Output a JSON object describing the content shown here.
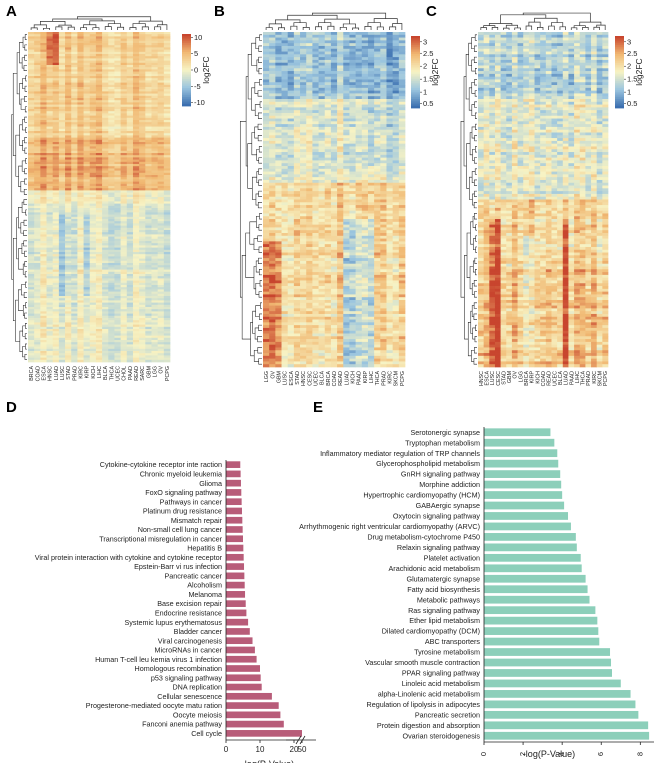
{
  "panels": {
    "A": {
      "letter": "A"
    },
    "B": {
      "letter": "B"
    },
    "C": {
      "letter": "C"
    },
    "D": {
      "letter": "D"
    },
    "E": {
      "letter": "E"
    }
  },
  "colors": {
    "low": "#3b6fb0",
    "mid_low": "#9cc6df",
    "mid": "#f7f3c4",
    "mid_high": "#f1b973",
    "high": "#c8452e",
    "bar_d": "#b85c79",
    "bar_e": "#8ccfba"
  },
  "chart_data": [
    {
      "type": "heatmap",
      "panel": "A",
      "legend_title": "log2FC",
      "legend_ticks": [
        "10",
        "5",
        "0",
        "-5",
        "-10"
      ],
      "range": [
        -10,
        10
      ],
      "columns": [
        "BRCA",
        "COAD",
        "ESCA",
        "HNSC",
        "LUAD",
        "LUSC",
        "STAD",
        "PRAD",
        "KIRC",
        "KIRP",
        "KICH",
        "LIHC",
        "BLCA",
        "THCA",
        "UCEC",
        "CHOL",
        "PAAD",
        "READ",
        "SARC",
        "GBM",
        "LGG",
        "OV",
        "PCPG"
      ]
    },
    {
      "type": "heatmap",
      "panel": "B",
      "legend_title": "log2FC",
      "legend_ticks": [
        "3",
        "2.5",
        "2",
        "1.5",
        "1",
        "0.5"
      ],
      "range": [
        0.3,
        3.2
      ],
      "columns": [
        "LGG",
        "OV",
        "GBM",
        "LUSC",
        "ESCA",
        "STAD",
        "HNSC",
        "CESC",
        "UCEC",
        "BLCA",
        "BRCA",
        "COAD",
        "READ",
        "LUAD",
        "KICH",
        "PAAD",
        "KIRP",
        "LIHC",
        "THCA",
        "PRAD",
        "KIRC",
        "SKCM",
        "PCPG"
      ]
    },
    {
      "type": "heatmap",
      "panel": "C",
      "legend_title": "log2FC",
      "legend_ticks": [
        "3",
        "2.5",
        "2",
        "1.5",
        "1",
        "0.5"
      ],
      "range": [
        0.3,
        3.2
      ],
      "columns": [
        "HNSC",
        "ESCA",
        "LUSC",
        "CESC",
        "STAD",
        "GBM",
        "OV",
        "LGG",
        "BRCA",
        "KIRP",
        "KICH",
        "COAD",
        "READ",
        "UCEC",
        "BLCA",
        "LUAD",
        "PAAD",
        "LIHC",
        "THCA",
        "PRAD",
        "KIRC",
        "SKCM",
        "PCPG"
      ]
    },
    {
      "type": "bar",
      "panel": "D",
      "orientation": "horizontal",
      "xlabel": "-log(P-Value)",
      "xticks": [
        "0",
        "10",
        "20",
        "50"
      ],
      "axis_break": [
        20,
        45
      ],
      "categories": [
        "Cytokine-cytokine receptor inte raction",
        "Chronic myeloid leukemia",
        "Glioma",
        "FoxO signaling pathway",
        "Pathways in cancer",
        "Platinum drug resistance",
        "Mismatch repair",
        "Non-small cell lung cancer",
        "Transcriptional misregulation in cancer",
        "Hepatitis B",
        "Viral protein interaction with cytokine and cytokine receptor",
        "Epstein-Barr vi rus infection",
        "Pancreatic cancer",
        "Alcoholism",
        "Melanoma",
        "Base excision repair",
        "Endocrine resistance",
        "Systemic lupus erythematosus",
        "Bladder cancer",
        "Viral carcinogenesis",
        "MicroRNAs in cancer",
        "Human T-cell leu kemia virus 1 infection",
        "Homologous recombination",
        "p53 signaling pathway",
        "DNA replication",
        "Cellular senescence",
        "Progesterone-mediated oocyte matu ration",
        "Oocyte meiosis",
        "Fanconi anemia pathway",
        "Cell cycle"
      ],
      "values": [
        4.2,
        4.3,
        4.4,
        4.5,
        4.6,
        4.7,
        4.8,
        4.9,
        5.0,
        5.1,
        5.2,
        5.3,
        5.4,
        5.5,
        5.6,
        5.8,
        6.0,
        6.5,
        7.0,
        7.8,
        8.5,
        9.0,
        10.0,
        10.2,
        10.5,
        13.5,
        15.5,
        16.0,
        17.0,
        50.0
      ]
    },
    {
      "type": "bar",
      "panel": "E",
      "orientation": "horizontal",
      "xlabel": "-log(P-Value)",
      "xticks": [
        "0",
        "2",
        "4",
        "6",
        "8"
      ],
      "xlim": [
        0,
        8.7
      ],
      "categories": [
        "Serotonergic synapse",
        "Tryptophan metabolism",
        "Inflammatory mediator regulation of TRP channels",
        "Glycerophospholipid metabolism",
        "GnRH signaling pathway",
        "Morphine addiction",
        "Hypertrophic cardiomyopathy (HCM)",
        "GABAergic synapse",
        "Oxytocin signaling pathway",
        "Arrhythmogenic right ventricular cardiomyopathy (ARVC)",
        "Drug metabolism-cytochrome P450",
        "Relaxin signaling pathway",
        "Platelet activation",
        "Arachidonic acid metabolism",
        "Glutamatergic synapse",
        "Fatty acid biosynthesis",
        "Metabolic pathways",
        "Ras signaling pathway",
        "Ether lipid metabolism",
        "Dilated cardiomyopathy (DCM)",
        "ABC transporters",
        "Tyrosine metabolism",
        "Vascular smooth muscle contraction",
        "PPAR signaling pathway",
        "Linoleic acid metabolism",
        "alpha-Linolenic acid metabolism",
        "Regulation of lipolysis in adipocytes",
        "Pancreatic secretion",
        "Protein digestion and absorption",
        "Ovarian steroidogenesis"
      ],
      "values": [
        3.4,
        3.6,
        3.75,
        3.8,
        3.9,
        3.95,
        4.0,
        4.1,
        4.3,
        4.45,
        4.7,
        4.75,
        4.95,
        5.0,
        5.2,
        5.3,
        5.4,
        5.7,
        5.8,
        5.85,
        5.9,
        6.45,
        6.5,
        6.55,
        7.0,
        7.5,
        7.75,
        7.9,
        8.4,
        8.45
      ]
    }
  ]
}
